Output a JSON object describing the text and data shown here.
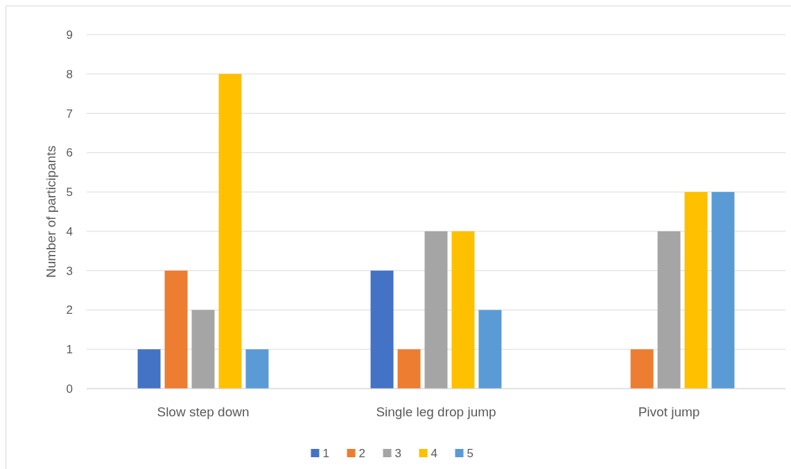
{
  "chart_data": {
    "type": "bar",
    "ylabel": "Number of participants",
    "categories": [
      "Slow step down",
      "Single leg drop jump",
      "Pivot jump"
    ],
    "series": [
      {
        "name": "1",
        "color": "#4472c4",
        "values": [
          1,
          3,
          0
        ]
      },
      {
        "name": "2",
        "color": "#ed7d31",
        "values": [
          3,
          1,
          1
        ]
      },
      {
        "name": "3",
        "color": "#a5a5a5",
        "values": [
          2,
          4,
          4
        ]
      },
      {
        "name": "4",
        "color": "#ffc000",
        "values": [
          8,
          4,
          5
        ]
      },
      {
        "name": "5",
        "color": "#5b9bd5",
        "values": [
          1,
          2,
          5
        ]
      }
    ],
    "ylim": [
      0,
      9
    ],
    "yticks": [
      0,
      1,
      2,
      3,
      4,
      5,
      6,
      7,
      8,
      9
    ],
    "grid": "y",
    "legend": "bottom"
  }
}
